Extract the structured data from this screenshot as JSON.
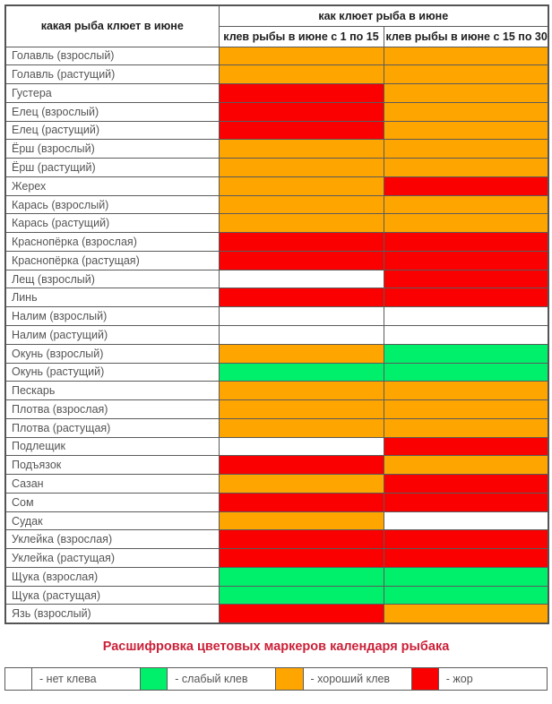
{
  "chart_data": {
    "type": "heatmap",
    "row_header": "какая рыба клюет в июне",
    "group_header": "как клюет рыба в июне",
    "columns": [
      "клев рыбы в июне с 1 по 15",
      "клев рыбы в июне с 15 по 30"
    ],
    "states": {
      "none": {
        "label": "нет клева",
        "color": "#FFFFFF"
      },
      "weak": {
        "label": "слабый клев",
        "color": "#00F06B"
      },
      "good": {
        "label": "хороший клев",
        "color": "#FFA500"
      },
      "frenzy": {
        "label": "жор",
        "color": "#FA0000"
      }
    },
    "rows": [
      {
        "fish": "Голавль (взрослый)",
        "values": [
          "good",
          "good"
        ]
      },
      {
        "fish": "Голавль (растущий)",
        "values": [
          "good",
          "good"
        ]
      },
      {
        "fish": "Густера",
        "values": [
          "frenzy",
          "good"
        ]
      },
      {
        "fish": "Елец (взрослый)",
        "values": [
          "frenzy",
          "good"
        ]
      },
      {
        "fish": "Елец (растущий)",
        "values": [
          "frenzy",
          "good"
        ]
      },
      {
        "fish": "Ёрш (взрослый)",
        "values": [
          "good",
          "good"
        ]
      },
      {
        "fish": "Ёрш (растущий)",
        "values": [
          "good",
          "good"
        ]
      },
      {
        "fish": "Жерех",
        "values": [
          "good",
          "frenzy"
        ]
      },
      {
        "fish": "Карась (взрослый)",
        "values": [
          "good",
          "good"
        ]
      },
      {
        "fish": "Карась (растущий)",
        "values": [
          "good",
          "good"
        ]
      },
      {
        "fish": "Краснопёрка (взрослая)",
        "values": [
          "frenzy",
          "frenzy"
        ]
      },
      {
        "fish": "Краснопёрка (растущая)",
        "values": [
          "frenzy",
          "frenzy"
        ]
      },
      {
        "fish": "Лещ (взрослый)",
        "values": [
          "none",
          "frenzy"
        ]
      },
      {
        "fish": "Линь",
        "values": [
          "frenzy",
          "frenzy"
        ]
      },
      {
        "fish": "Налим (взрослый)",
        "values": [
          "none",
          "none"
        ]
      },
      {
        "fish": "Налим (растущий)",
        "values": [
          "none",
          "none"
        ]
      },
      {
        "fish": "Окунь (взрослый)",
        "values": [
          "good",
          "weak"
        ]
      },
      {
        "fish": "Окунь (растущий)",
        "values": [
          "weak",
          "weak"
        ]
      },
      {
        "fish": "Пескарь",
        "values": [
          "good",
          "good"
        ]
      },
      {
        "fish": "Плотва (взрослая)",
        "values": [
          "good",
          "good"
        ]
      },
      {
        "fish": "Плотва (растущая)",
        "values": [
          "good",
          "good"
        ]
      },
      {
        "fish": "Подлещик",
        "values": [
          "none",
          "frenzy"
        ]
      },
      {
        "fish": "Подъязок",
        "values": [
          "frenzy",
          "good"
        ]
      },
      {
        "fish": "Сазан",
        "values": [
          "good",
          "frenzy"
        ]
      },
      {
        "fish": "Сом",
        "values": [
          "frenzy",
          "frenzy"
        ]
      },
      {
        "fish": "Судак",
        "values": [
          "good",
          "none"
        ]
      },
      {
        "fish": "Уклейка (взрослая)",
        "values": [
          "frenzy",
          "frenzy"
        ]
      },
      {
        "fish": "Уклейка (растущая)",
        "values": [
          "frenzy",
          "frenzy"
        ]
      },
      {
        "fish": "Щука (взрослая)",
        "values": [
          "weak",
          "weak"
        ]
      },
      {
        "fish": "Щука (растущая)",
        "values": [
          "weak",
          "weak"
        ]
      },
      {
        "fish": "Язь (взрослый)",
        "values": [
          "frenzy",
          "good"
        ]
      }
    ]
  },
  "legend": {
    "title": "Расшифровка цветовых маркеров календаря рыбака",
    "items": [
      {
        "state": "none",
        "label": "- нет клева"
      },
      {
        "state": "weak",
        "label": "- слабый клев"
      },
      {
        "state": "good",
        "label": "- хороший клев"
      },
      {
        "state": "frenzy",
        "label": "- жор"
      }
    ]
  }
}
